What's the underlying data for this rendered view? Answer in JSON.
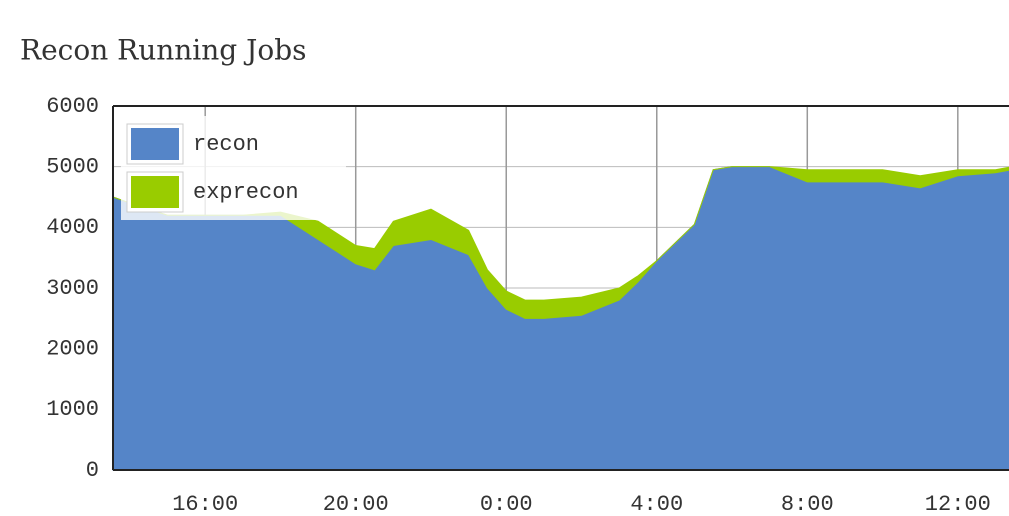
{
  "chart_data": {
    "type": "stacked-area",
    "title": "Recon Running Jobs",
    "x": [
      13.55,
      14,
      15,
      16,
      17,
      18,
      19,
      20,
      20.5,
      21,
      22,
      23,
      23.5,
      24,
      24.5,
      25,
      26,
      27,
      27.5,
      28,
      29,
      29.5,
      30,
      31,
      32,
      33,
      34,
      35,
      36,
      37,
      37.44
    ],
    "series": [
      {
        "name": "recon",
        "color": "#5585c8",
        "values": [
          4500,
          4400,
          4200,
          4200,
          4200,
          4200,
          3800,
          3400,
          3300,
          3700,
          3800,
          3550,
          3000,
          2650,
          2500,
          2500,
          2550,
          2800,
          3100,
          3450,
          4050,
          4950,
          5000,
          5000,
          4750,
          4750,
          4750,
          4650,
          4850,
          4900,
          4950
        ]
      },
      {
        "name": "exprecon",
        "color": "#99cc00",
        "values": [
          0,
          0,
          0,
          0,
          0,
          50,
          300,
          300,
          350,
          400,
          500,
          400,
          300,
          300,
          300,
          300,
          300,
          200,
          100,
          0,
          0,
          0,
          0,
          0,
          200,
          200,
          200,
          200,
          100,
          50,
          50
        ]
      }
    ],
    "xlim": [
      13.55,
      37.44
    ],
    "xticks": [
      {
        "value": 16,
        "label": "16:00"
      },
      {
        "value": 20,
        "label": "20:00"
      },
      {
        "value": 24,
        "label": "0:00"
      },
      {
        "value": 28,
        "label": "4:00"
      },
      {
        "value": 32,
        "label": "8:00"
      },
      {
        "value": 36,
        "label": "12:00"
      }
    ],
    "ylim": [
      0,
      6000
    ],
    "yticks": [
      0,
      1000,
      2000,
      3000,
      4000,
      5000,
      6000
    ],
    "grid": true,
    "legend": "top-left"
  }
}
